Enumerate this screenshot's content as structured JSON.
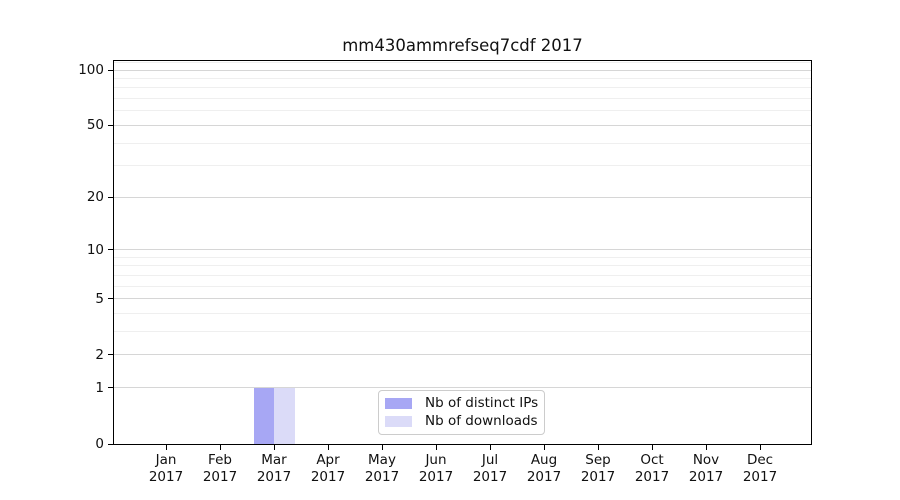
{
  "chart_data": {
    "type": "bar",
    "title": "mm430ammrefseq7cdf 2017",
    "categories": [
      "Jan 2017",
      "Feb 2017",
      "Mar 2017",
      "Apr 2017",
      "May 2017",
      "Jun 2017",
      "Jul 2017",
      "Aug 2017",
      "Sep 2017",
      "Oct 2017",
      "Nov 2017",
      "Dec 2017"
    ],
    "series": [
      {
        "name": "Nb of distinct IPs",
        "color": "#a7a7f4",
        "values": [
          0,
          0,
          1,
          0,
          0,
          0,
          0,
          0,
          0,
          0,
          0,
          0
        ]
      },
      {
        "name": "Nb of downloads",
        "color": "#dbdbf8",
        "values": [
          0,
          0,
          1,
          0,
          0,
          0,
          0,
          0,
          0,
          0,
          0,
          0
        ]
      }
    ],
    "xlabel": "",
    "ylabel": "",
    "y_axis": {
      "scale": "log10(1+y)",
      "ticks": [
        0,
        1,
        2,
        5,
        10,
        20,
        50,
        100
      ],
      "minor_gridlines": [
        3,
        4,
        6,
        7,
        8,
        9,
        30,
        40,
        60,
        70,
        80,
        90,
        110
      ],
      "ylim": [
        0,
        112
      ]
    },
    "grid": true,
    "legend": {
      "position": "lower center",
      "entries": [
        "Nb of distinct IPs",
        "Nb of downloads"
      ]
    }
  }
}
